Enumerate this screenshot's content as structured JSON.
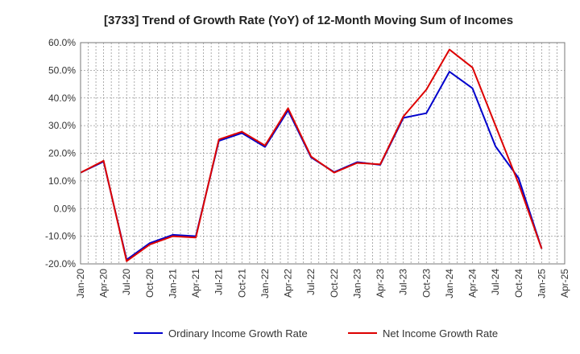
{
  "chart_data": {
    "type": "line",
    "title": "[3733]  Trend of Growth Rate (YoY) of 12-Month Moving Sum of Incomes",
    "xlabel": "",
    "ylabel": "",
    "ylim": [
      -20,
      60
    ],
    "yticks": [
      "60.0%",
      "50.0%",
      "40.0%",
      "30.0%",
      "20.0%",
      "10.0%",
      "0.0%",
      "-10.0%",
      "-20.0%"
    ],
    "ytick_values": [
      60,
      50,
      40,
      30,
      20,
      10,
      0,
      -10,
      -20
    ],
    "xticks": [
      "Jan-20",
      "Apr-20",
      "Jul-20",
      "Oct-20",
      "Jan-21",
      "Apr-21",
      "Jul-21",
      "Oct-21",
      "Jan-22",
      "Apr-22",
      "Jul-22",
      "Oct-22",
      "Jan-23",
      "Apr-23",
      "Jul-23",
      "Oct-23",
      "Jan-24",
      "Apr-24",
      "Jul-24",
      "Oct-24",
      "Jan-25",
      "Apr-25"
    ],
    "grid": true,
    "legend_position": "bottom",
    "x": [
      "Jan-20",
      "Apr-20",
      "Jul-20",
      "Oct-20",
      "Jan-21",
      "Apr-21",
      "Jul-21",
      "Oct-21",
      "Jan-22",
      "Apr-22",
      "Jul-22",
      "Oct-22",
      "Jan-23",
      "Apr-23",
      "Jul-23",
      "Oct-23",
      "Jan-24",
      "Apr-24",
      "Jul-24",
      "Oct-24",
      "Jan-25"
    ],
    "series": [
      {
        "name": "Ordinary Income Growth Rate",
        "color": "#0000cc",
        "values": [
          13.0,
          17.0,
          -18.5,
          -12.5,
          -9.5,
          -10.0,
          24.5,
          27.3,
          22.3,
          35.5,
          18.5,
          13.2,
          16.8,
          15.8,
          32.8,
          34.5,
          49.5,
          43.5,
          22.5,
          11.0,
          -14.5
        ]
      },
      {
        "name": "Net Income Growth Rate",
        "color": "#dd0000",
        "values": [
          13.0,
          17.3,
          -19.0,
          -13.0,
          -10.0,
          -10.5,
          25.0,
          27.8,
          22.8,
          36.3,
          18.8,
          13.0,
          16.5,
          16.0,
          33.3,
          43.0,
          57.5,
          51.0,
          30.0,
          9.0,
          -14.5
        ]
      }
    ]
  }
}
